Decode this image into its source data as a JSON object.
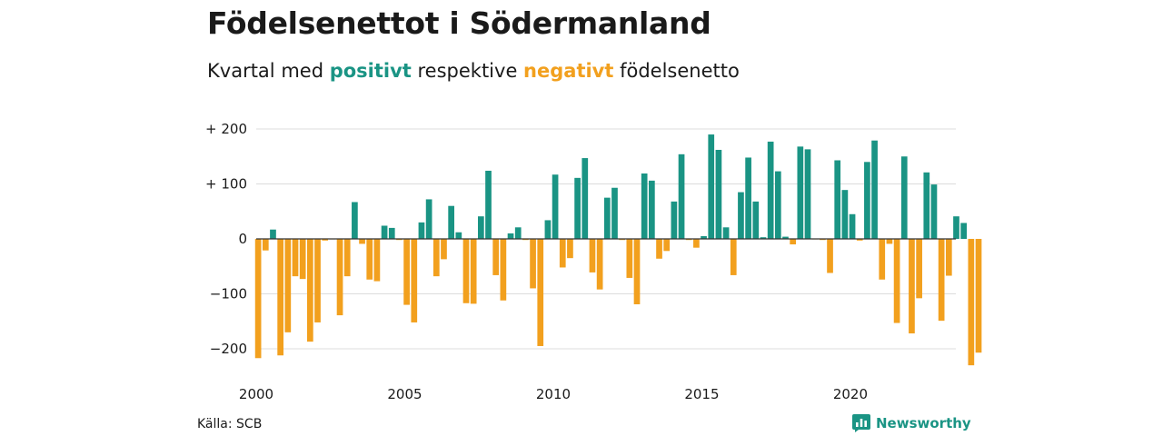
{
  "header": {
    "title": "Födelsenettot i Södermanland",
    "subtitle_prefix": "Kvartal med ",
    "subtitle_positive": "positivt",
    "subtitle_middle": " respektive ",
    "subtitle_negative": "negativt",
    "subtitle_suffix": " födelsenetto"
  },
  "footer": {
    "source": "Källa: SCB",
    "brand": "Newsworthy",
    "brand_icon": "newsworthy-logo-icon"
  },
  "colors": {
    "positive": "#1a9484",
    "negative": "#f2a01e",
    "grid": "#dcdcdc",
    "zero_line": "#333333"
  },
  "chart_data": {
    "type": "bar",
    "title": "Födelsenettot i Södermanland",
    "xlabel": "",
    "ylabel": "",
    "ylim": [
      -230,
      200
    ],
    "grid": true,
    "y_ticks": [
      {
        "value": 200,
        "label": "+ 200"
      },
      {
        "value": 100,
        "label": "+ 100"
      },
      {
        "value": 0,
        "label": "0"
      },
      {
        "value": -100,
        "label": "−100"
      },
      {
        "value": -200,
        "label": "−200"
      }
    ],
    "x_ticks": [
      {
        "value": 2000,
        "label": "2000"
      },
      {
        "value": 2005,
        "label": "2005"
      },
      {
        "value": 2010,
        "label": "2010"
      },
      {
        "value": 2015,
        "label": "2015"
      },
      {
        "value": 2020,
        "label": "2020"
      }
    ],
    "start_year": 2000,
    "periods_per_year": 4,
    "x_range": [
      2000,
      2023.55
    ],
    "values": [
      -217,
      -21,
      17,
      -212,
      -170,
      -68,
      -73,
      -187,
      -152,
      -3,
      -1,
      -139,
      -68,
      67,
      -9,
      -74,
      -77,
      24,
      20,
      -2,
      -120,
      -152,
      30,
      72,
      -68,
      -37,
      60,
      12,
      -117,
      -118,
      41,
      124,
      -66,
      -112,
      10,
      21,
      -2,
      -90,
      -195,
      34,
      117,
      -52,
      -35,
      111,
      147,
      -61,
      -92,
      75,
      93,
      -2,
      -71,
      -119,
      119,
      106,
      -36,
      -22,
      68,
      154,
      -2,
      -16,
      5,
      190,
      162,
      21,
      -66,
      85,
      148,
      68,
      3,
      177,
      123,
      4,
      -10,
      168,
      163,
      -1,
      -2,
      -62,
      143,
      89,
      45,
      -3,
      140,
      179,
      -74,
      -9,
      -153,
      150,
      -172,
      -108,
      121,
      99,
      -149,
      -67,
      41,
      29,
      -230,
      -207
    ]
  }
}
